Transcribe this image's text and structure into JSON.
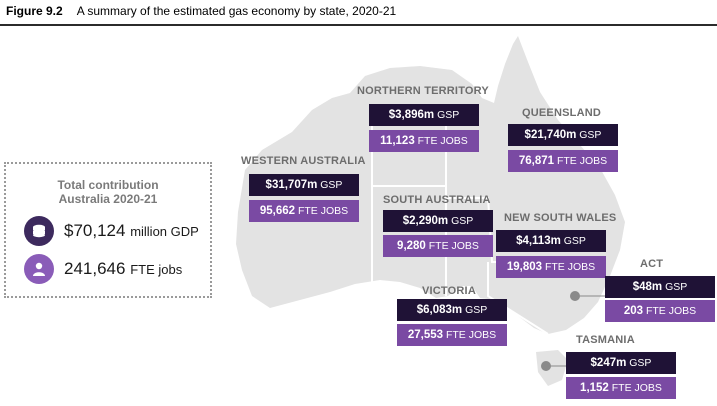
{
  "figure": {
    "label": "Figure 9.2",
    "title": "A summary of the estimated gas economy by state, 2020-21"
  },
  "total": {
    "title_line1": "Total contribution",
    "title_line2": "Australia 2020-21",
    "gdp_value": "$70,124",
    "gdp_unit": "million GDP",
    "jobs_value": "241,646",
    "jobs_unit": "FTE jobs",
    "gdp_icon": "coins-icon",
    "jobs_icon": "people-icon"
  },
  "gsp_unit": "GSP",
  "fte_unit": "FTE JOBS",
  "states": [
    {
      "name": "NORTHERN TERRITORY",
      "gsp": "$3,896m",
      "fte": "11,123"
    },
    {
      "name": "QUEENSLAND",
      "gsp": "$21,740m",
      "fte": "76,871"
    },
    {
      "name": "WESTERN AUSTRALIA",
      "gsp": "$31,707m",
      "fte": "95,662"
    },
    {
      "name": "SOUTH AUSTRALIA",
      "gsp": "$2,290m",
      "fte": "9,280"
    },
    {
      "name": "NEW SOUTH WALES",
      "gsp": "$4,113m",
      "fte": "19,803"
    },
    {
      "name": "ACT",
      "gsp": "$48m",
      "fte": "203"
    },
    {
      "name": "VICTORIA",
      "gsp": "$6,083m",
      "fte": "27,553"
    },
    {
      "name": "TASMANIA",
      "gsp": "$247m",
      "fte": "1,152"
    }
  ],
  "colors": {
    "gsp_box": "#1f1236",
    "fte_box": "#7a4aa3",
    "map_fill": "#e3e3e3",
    "border": "#ffffff",
    "icon_dark": "#3d2a5e",
    "icon_purple": "#8a5cb8"
  }
}
